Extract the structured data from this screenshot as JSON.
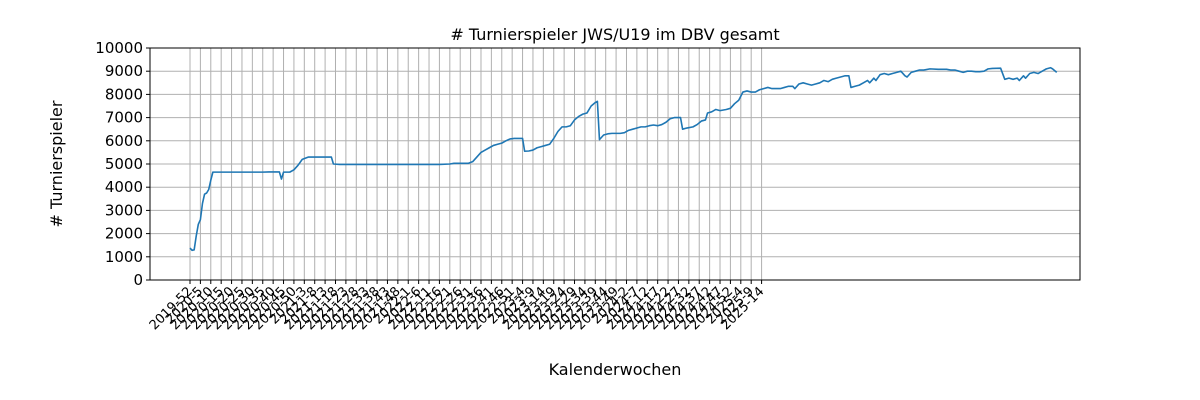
{
  "chart_data": {
    "type": "line",
    "title": "# Turnierspieler JWS/U19 im DBV gesamt",
    "xlabel": "Kalenderwochen",
    "ylabel": "# Turnierspieler",
    "ylim": [
      0,
      10000
    ],
    "y_ticks": [
      0,
      1000,
      2000,
      3000,
      4000,
      5000,
      6000,
      7000,
      8000,
      9000,
      10000
    ],
    "x_ticks": [
      "2019-52",
      "2020-5",
      "2020-10",
      "2020-15",
      "2020-20",
      "2020-25",
      "2020-30",
      "2020-35",
      "2020-40",
      "2020-45",
      "2020-50",
      "2021-3",
      "2021-8",
      "2021-13",
      "2021-18",
      "2021-23",
      "2021-28",
      "2021-33",
      "2021-38",
      "2021-43",
      "2021-48",
      "2022-1",
      "2022-6",
      "2022-11",
      "2022-16",
      "2022-21",
      "2022-26",
      "2022-31",
      "2022-36",
      "2022-41",
      "2022-46",
      "2022-51",
      "2023-4",
      "2023-9",
      "2023-14",
      "2023-19",
      "2023-24",
      "2023-29",
      "2023-34",
      "2023-39",
      "2023-44",
      "2023-49",
      "2024-2",
      "2024-7",
      "2024-12",
      "2024-17",
      "2024-22",
      "2024-27",
      "2024-32",
      "2024-37",
      "2024-42",
      "2024-47",
      "2024-52",
      "2025-4",
      "2025-9",
      "2025-14"
    ],
    "grid": true,
    "series": [
      {
        "color": "#1f77b4",
        "points": [
          [
            0,
            1380
          ],
          [
            1,
            1280
          ],
          [
            2,
            1300
          ],
          [
            3,
            1900
          ],
          [
            4,
            2400
          ],
          [
            5,
            2600
          ],
          [
            6,
            3300
          ],
          [
            7,
            3700
          ],
          [
            8,
            3750
          ],
          [
            9,
            3900
          ],
          [
            10,
            4300
          ],
          [
            11,
            4650
          ],
          [
            12,
            4650
          ],
          [
            15,
            4650
          ],
          [
            20,
            4650
          ],
          [
            25,
            4650
          ],
          [
            30,
            4650
          ],
          [
            35,
            4650
          ],
          [
            38,
            4660
          ],
          [
            41,
            4660
          ],
          [
            43,
            4660
          ],
          [
            44,
            4350
          ],
          [
            45,
            4650
          ],
          [
            48,
            4650
          ],
          [
            50,
            4750
          ],
          [
            52,
            4950
          ],
          [
            54,
            5200
          ],
          [
            57,
            5300
          ],
          [
            60,
            5300
          ],
          [
            65,
            5300
          ],
          [
            68,
            5300
          ],
          [
            69,
            5000
          ],
          [
            72,
            4980
          ],
          [
            75,
            4980
          ],
          [
            80,
            4980
          ],
          [
            90,
            4980
          ],
          [
            100,
            4980
          ],
          [
            110,
            4980
          ],
          [
            120,
            4980
          ],
          [
            125,
            5000
          ],
          [
            127,
            5030
          ],
          [
            134,
            5030
          ],
          [
            136,
            5100
          ],
          [
            138,
            5300
          ],
          [
            140,
            5500
          ],
          [
            142,
            5600
          ],
          [
            144,
            5700
          ],
          [
            146,
            5800
          ],
          [
            148,
            5850
          ],
          [
            150,
            5900
          ],
          [
            152,
            6000
          ],
          [
            154,
            6080
          ],
          [
            156,
            6100
          ],
          [
            160,
            6100
          ],
          [
            161,
            5550
          ],
          [
            163,
            5560
          ],
          [
            165,
            5600
          ],
          [
            167,
            5700
          ],
          [
            169,
            5750
          ],
          [
            171,
            5800
          ],
          [
            173,
            5850
          ],
          [
            175,
            6100
          ],
          [
            177,
            6400
          ],
          [
            179,
            6600
          ],
          [
            181,
            6600
          ],
          [
            183,
            6650
          ],
          [
            185,
            6900
          ],
          [
            187,
            7050
          ],
          [
            189,
            7150
          ],
          [
            191,
            7200
          ],
          [
            193,
            7500
          ],
          [
            195,
            7650
          ],
          [
            196,
            7700
          ],
          [
            197,
            6050
          ],
          [
            199,
            6250
          ],
          [
            201,
            6300
          ],
          [
            203,
            6320
          ],
          [
            207,
            6320
          ],
          [
            209,
            6350
          ],
          [
            211,
            6450
          ],
          [
            213,
            6500
          ],
          [
            215,
            6550
          ],
          [
            217,
            6600
          ],
          [
            219,
            6600
          ],
          [
            221,
            6650
          ],
          [
            223,
            6680
          ],
          [
            225,
            6650
          ],
          [
            227,
            6700
          ],
          [
            229,
            6800
          ],
          [
            231,
            6950
          ],
          [
            233,
            7000
          ],
          [
            236,
            7000
          ],
          [
            237,
            6500
          ],
          [
            239,
            6550
          ],
          [
            242,
            6600
          ],
          [
            244,
            6700
          ],
          [
            246,
            6850
          ],
          [
            248,
            6900
          ],
          [
            249,
            7200
          ],
          [
            251,
            7250
          ],
          [
            253,
            7350
          ],
          [
            255,
            7300
          ],
          [
            258,
            7350
          ],
          [
            260,
            7400
          ],
          [
            262,
            7600
          ],
          [
            264,
            7750
          ],
          [
            266,
            8100
          ],
          [
            268,
            8150
          ],
          [
            270,
            8100
          ],
          [
            272,
            8100
          ],
          [
            274,
            8200
          ],
          [
            276,
            8250
          ],
          [
            278,
            8300
          ],
          [
            280,
            8250
          ],
          [
            284,
            8250
          ],
          [
            286,
            8300
          ],
          [
            288,
            8350
          ],
          [
            290,
            8350
          ],
          [
            291,
            8250
          ],
          [
            293,
            8450
          ],
          [
            295,
            8500
          ],
          [
            297,
            8450
          ],
          [
            299,
            8400
          ],
          [
            301,
            8450
          ],
          [
            303,
            8500
          ],
          [
            305,
            8600
          ],
          [
            307,
            8550
          ],
          [
            309,
            8650
          ],
          [
            311,
            8700
          ],
          [
            313,
            8750
          ],
          [
            315,
            8800
          ],
          [
            317,
            8800
          ],
          [
            318,
            8300
          ],
          [
            320,
            8350
          ],
          [
            322,
            8400
          ],
          [
            324,
            8500
          ],
          [
            326,
            8600
          ],
          [
            327,
            8500
          ],
          [
            329,
            8700
          ],
          [
            330,
            8600
          ],
          [
            332,
            8850
          ],
          [
            334,
            8900
          ],
          [
            336,
            8850
          ],
          [
            338,
            8900
          ],
          [
            340,
            8950
          ],
          [
            342,
            9000
          ],
          [
            344,
            8800
          ],
          [
            345,
            8750
          ],
          [
            347,
            8950
          ],
          [
            349,
            9000
          ],
          [
            351,
            9050
          ],
          [
            353,
            9050
          ],
          [
            356,
            9100
          ],
          [
            360,
            9080
          ],
          [
            364,
            9080
          ],
          [
            366,
            9050
          ],
          [
            368,
            9050
          ],
          [
            370,
            9000
          ],
          [
            372,
            8950
          ],
          [
            374,
            9000
          ],
          [
            376,
            9000
          ],
          [
            378,
            8980
          ],
          [
            380,
            8980
          ],
          [
            382,
            9000
          ],
          [
            384,
            9100
          ],
          [
            386,
            9120
          ],
          [
            390,
            9130
          ],
          [
            392,
            8650
          ],
          [
            394,
            8700
          ],
          [
            396,
            8650
          ],
          [
            398,
            8700
          ],
          [
            399,
            8600
          ],
          [
            401,
            8800
          ],
          [
            402,
            8700
          ],
          [
            404,
            8900
          ],
          [
            406,
            8950
          ],
          [
            408,
            8900
          ],
          [
            410,
            9000
          ],
          [
            412,
            9100
          ],
          [
            414,
            9150
          ],
          [
            415,
            9100
          ],
          [
            417,
            8950
          ]
        ]
      }
    ]
  }
}
